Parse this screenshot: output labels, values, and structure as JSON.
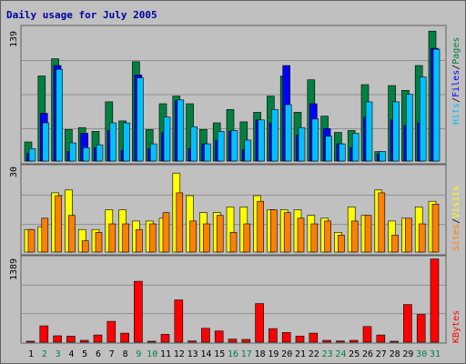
{
  "title": "Daily usage for July 2005",
  "colors": {
    "pages": "#008040",
    "files": "#0000ff",
    "hits": "#00c0ff",
    "visits": "#ffff00",
    "sites": "#ff8000",
    "kbytes": "#ff0000",
    "weekday_label": "#000000",
    "weekend_label": "#00804a",
    "title": "#0000a0"
  },
  "chart_data": [
    {
      "type": "bar",
      "name": "hits-files-pages",
      "categories": [
        "1",
        "2",
        "3",
        "4",
        "5",
        "6",
        "7",
        "8",
        "9",
        "10",
        "11",
        "12",
        "13",
        "14",
        "15",
        "16",
        "17",
        "18",
        "19",
        "20",
        "21",
        "22",
        "23",
        "24",
        "25",
        "26",
        "27",
        "28",
        "29",
        "30",
        "31"
      ],
      "ylim": [
        0,
        139
      ],
      "ytick_label": "139",
      "legend": [
        "Pages",
        "Files",
        "Hits"
      ],
      "series": [
        {
          "name": "Pages",
          "values": [
            20,
            89,
            107,
            33,
            35,
            31,
            62,
            42,
            104,
            33,
            60,
            68,
            60,
            33,
            40,
            54,
            41,
            51,
            68,
            89,
            51,
            85,
            47,
            30,
            32,
            80,
            10,
            79,
            74,
            100,
            136
          ]
        },
        {
          "name": "Files",
          "values": [
            8,
            50,
            100,
            10,
            29,
            14,
            32,
            11,
            90,
            13,
            30,
            63,
            13,
            18,
            22,
            31,
            12,
            43,
            40,
            100,
            27,
            60,
            34,
            18,
            14,
            46,
            7,
            43,
            37,
            40,
            118
          ]
        },
        {
          "name": "Hits",
          "values": [
            13,
            40,
            96,
            19,
            14,
            17,
            40,
            40,
            87,
            18,
            46,
            64,
            36,
            18,
            31,
            32,
            22,
            43,
            54,
            59,
            35,
            44,
            26,
            18,
            29,
            62,
            10,
            62,
            70,
            88,
            117
          ]
        }
      ]
    },
    {
      "type": "bar",
      "name": "visits-sites",
      "categories": [
        "1",
        "2",
        "3",
        "4",
        "5",
        "6",
        "7",
        "8",
        "9",
        "10",
        "11",
        "12",
        "13",
        "14",
        "15",
        "16",
        "17",
        "18",
        "19",
        "20",
        "21",
        "22",
        "23",
        "24",
        "25",
        "26",
        "27",
        "28",
        "29",
        "30",
        "31"
      ],
      "ylim": [
        0,
        30
      ],
      "ytick_label": "30",
      "legend": [
        "Visits",
        "Sites"
      ],
      "series": [
        {
          "name": "Visits",
          "values": [
            8,
            9,
            21,
            22,
            8,
            8,
            15,
            15,
            11,
            11,
            12,
            28,
            20,
            14,
            14,
            16,
            16,
            20,
            15,
            15,
            15,
            13,
            12,
            7,
            16,
            13,
            22,
            11,
            12,
            16,
            18
          ]
        },
        {
          "name": "Sites",
          "values": [
            8,
            12,
            20,
            13,
            4,
            7,
            10,
            10,
            8,
            10,
            14,
            21,
            11,
            10,
            13,
            7,
            10,
            18,
            15,
            14,
            12,
            10,
            11,
            6,
            11,
            13,
            21,
            6,
            12,
            10,
            17
          ]
        }
      ]
    },
    {
      "type": "bar",
      "name": "kbytes",
      "categories": [
        "1",
        "2",
        "3",
        "4",
        "5",
        "6",
        "7",
        "8",
        "9",
        "10",
        "11",
        "12",
        "13",
        "14",
        "15",
        "16",
        "17",
        "18",
        "19",
        "20",
        "21",
        "22",
        "23",
        "24",
        "25",
        "26",
        "27",
        "28",
        "29",
        "30",
        "31"
      ],
      "ylim": [
        0,
        1389
      ],
      "ytick_label": "1389",
      "legend": [
        "KBytes"
      ],
      "series": [
        {
          "name": "KBytes",
          "values": [
            15,
            270,
            105,
            100,
            30,
            120,
            345,
            150,
            1010,
            10,
            130,
            700,
            20,
            230,
            185,
            50,
            45,
            640,
            225,
            160,
            100,
            150,
            30,
            20,
            30,
            260,
            120,
            15,
            625,
            460,
            1380
          ]
        }
      ]
    }
  ],
  "x_axis": {
    "labels": [
      "1",
      "2",
      "3",
      "4",
      "5",
      "6",
      "7",
      "8",
      "9",
      "10",
      "11",
      "12",
      "13",
      "14",
      "15",
      "16",
      "17",
      "18",
      "19",
      "20",
      "21",
      "22",
      "23",
      "24",
      "25",
      "26",
      "27",
      "28",
      "29",
      "30",
      "31"
    ],
    "weekend_days": [
      2,
      3,
      9,
      10,
      16,
      17,
      23,
      24,
      30,
      31
    ]
  }
}
